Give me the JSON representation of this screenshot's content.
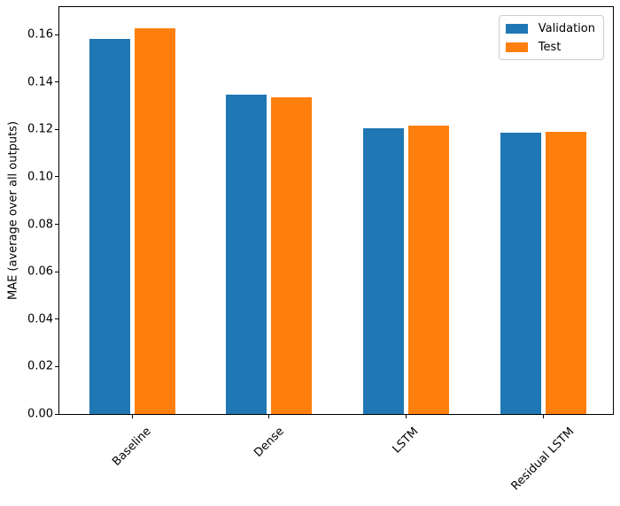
{
  "chart_data": {
    "type": "bar",
    "title": "",
    "xlabel": "",
    "ylabel": "MAE (average over all outputs)",
    "categories": [
      "Baseline",
      "Dense",
      "LSTM",
      "Residual LSTM"
    ],
    "series": [
      {
        "name": "Validation",
        "color": "#1f77b4",
        "values": [
          0.158,
          0.1345,
          0.1205,
          0.1185
        ]
      },
      {
        "name": "Test",
        "color": "#ff7f0e",
        "values": [
          0.1625,
          0.1335,
          0.1215,
          0.119
        ]
      }
    ],
    "ylim": [
      0,
      0.1716
    ],
    "y_tick_values": [
      0.0,
      0.02,
      0.04,
      0.06,
      0.08,
      0.1,
      0.12,
      0.14,
      0.16
    ],
    "y_tick_labels": [
      "0.00",
      "0.02",
      "0.04",
      "0.06",
      "0.08",
      "0.10",
      "0.12",
      "0.14",
      "0.16"
    ],
    "x_tick_rotation_deg": 45,
    "grid": false,
    "legend_position": "upper right",
    "background_color": "#ffffff",
    "spine_color": "#000000"
  }
}
